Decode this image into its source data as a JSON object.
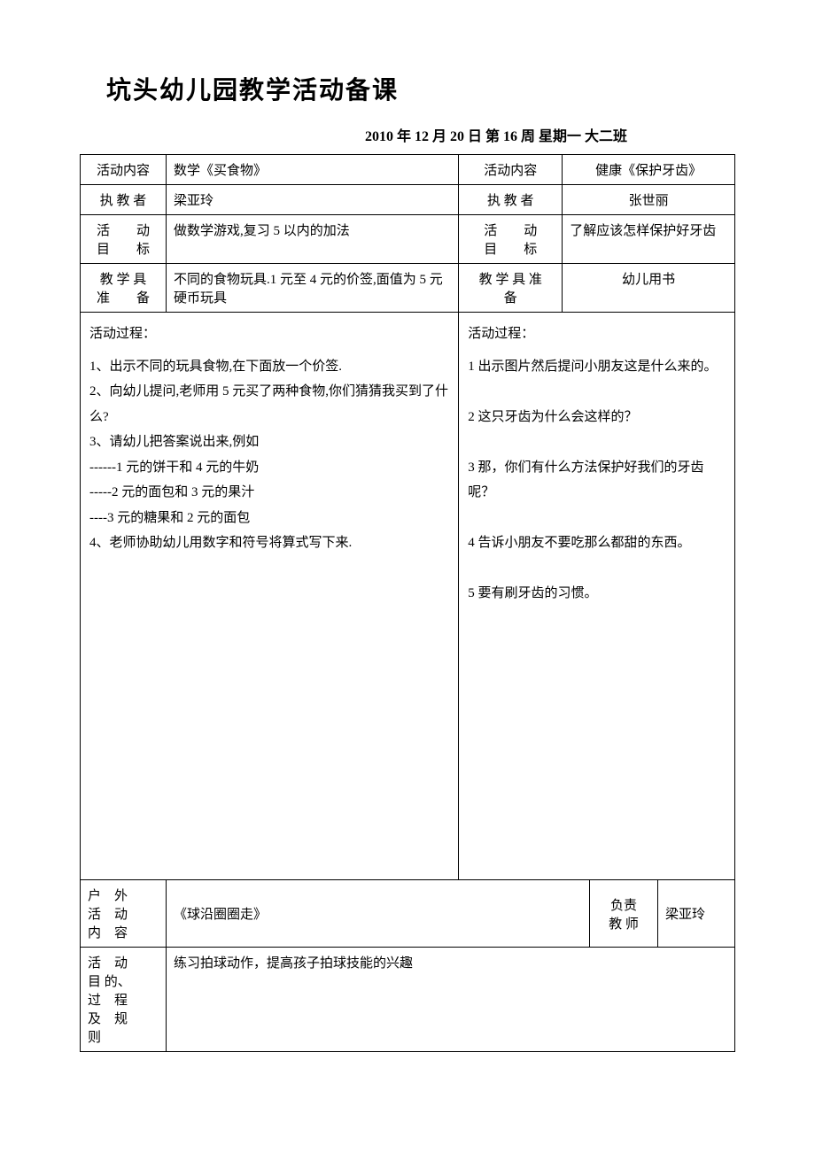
{
  "title": "坑头幼儿园教学活动备课",
  "subtitle": "2010 年 12 月 20 日 第 16 周 星期一 大二班",
  "labels": {
    "activity_content": "活动内容",
    "teacher": "执 教 者",
    "activity_goal_line1": "活　　动",
    "activity_goal_line2": "目　　标",
    "materials_left_line1": "教 学 具",
    "materials_left_line2": "准　　备",
    "materials_right_line1": "教 学 具 准",
    "materials_right_line2": "备",
    "process": "活动过程：",
    "outdoor_line1": "户　外",
    "outdoor_line2": "活　动",
    "outdoor_line3": "内　容",
    "responsible_line1": "负责",
    "responsible_line2": "教 师",
    "purpose_line1": "活　动",
    "purpose_line2": "目 的、",
    "purpose_line3": "过　程",
    "purpose_line4": "及　规",
    "purpose_line5": "则"
  },
  "left": {
    "activity_content": "数学《买食物》",
    "teacher": "梁亚玲",
    "goal": "做数学游戏,复习 5 以内的加法",
    "materials": "不同的食物玩具.1 元至 4 元的价签,面值为 5 元硬币玩具",
    "process_lines": [
      "1、出示不同的玩具食物,在下面放一个价签.",
      "2、向幼儿提问,老师用 5 元买了两种食物,你们猜猜我买到了什么?",
      "3、请幼儿把答案说出来,例如",
      "------1 元的饼干和 4 元的牛奶",
      "-----2 元的面包和 3 元的果汁",
      "----3 元的糖果和 2 元的面包",
      "4、老师协助幼儿用数字和符号将算式写下来."
    ]
  },
  "right": {
    "activity_content": "健康《保护牙齿》",
    "teacher": "张世丽",
    "goal": "了解应该怎样保护好牙齿",
    "materials": "幼儿用书",
    "process_lines": [
      "1 出示图片然后提问小朋友这是什么来的。",
      "",
      "2 这只牙齿为什么会这样的？",
      "",
      "3 那，你们有什么方法保护好我们的牙齿呢？",
      "",
      "4 告诉小朋友不要吃那么都甜的东西。",
      "",
      "5 要有刷牙齿的习惯。"
    ]
  },
  "outdoor": {
    "content": "《球沿圈圈走》",
    "responsible_teacher": "梁亚玲",
    "purpose": "练习拍球动作，提高孩子拍球技能的兴趣"
  }
}
